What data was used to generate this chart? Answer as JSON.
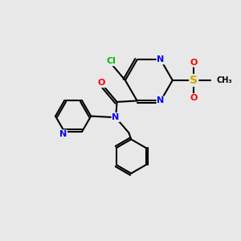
{
  "background_color": "#e8e8e8",
  "bond_color": "#000000",
  "atom_colors": {
    "N": "#0000ff",
    "O": "#ff0000",
    "S": "#ccaa00",
    "Cl": "#00bb00",
    "C": "#000000"
  },
  "font_size": 8,
  "figsize": [
    3.0,
    3.0
  ],
  "dpi": 100
}
